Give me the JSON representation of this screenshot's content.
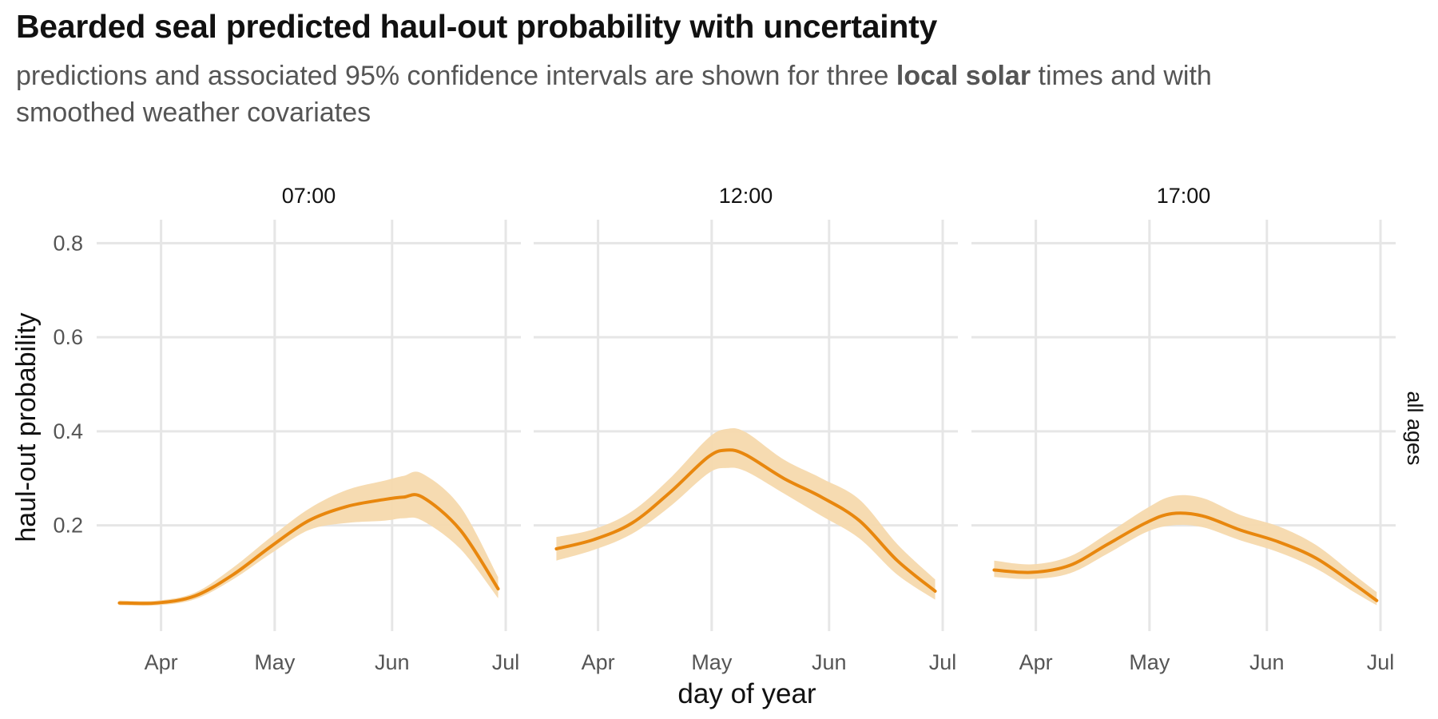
{
  "title": "Bearded seal predicted haul-out probability with uncertainty",
  "subtitle": {
    "before": "predictions and associated 95% confidence intervals are shown for three ",
    "bold": "local solar",
    "after": " times and with smoothed weather covariates"
  },
  "colors": {
    "line": "#E8870E",
    "ribbon": "#F6D9AD",
    "grid": "#E6E6E6",
    "tick_text": "#555555",
    "label_text": "#111111"
  },
  "chart_data": {
    "type": "line",
    "xlabel": "day of year",
    "ylabel": "haul-out probability",
    "strip_right": "all ages",
    "x_ticks": [
      "Apr",
      "May",
      "Jun",
      "Jul"
    ],
    "x_tick_days": [
      91,
      121,
      152,
      182
    ],
    "xlim": [
      74,
      186
    ],
    "y_ticks": [
      "0.2",
      "0.4",
      "0.6",
      "0.8"
    ],
    "y_tick_values": [
      0.2,
      0.4,
      0.6,
      0.8
    ],
    "ylim": [
      -0.025,
      0.85
    ],
    "grid": true,
    "panels": [
      {
        "label": "07:00",
        "x": [
          80,
          90,
          100,
          110,
          120,
          130,
          140,
          150,
          155,
          160,
          170,
          180
        ],
        "y": [
          0.035,
          0.035,
          0.05,
          0.095,
          0.155,
          0.21,
          0.24,
          0.255,
          0.26,
          0.26,
          0.19,
          0.065
        ],
        "lower": [
          0.03,
          0.03,
          0.043,
          0.085,
          0.14,
          0.19,
          0.205,
          0.21,
          0.215,
          0.21,
          0.15,
          0.045
        ],
        "upper": [
          0.04,
          0.04,
          0.057,
          0.11,
          0.175,
          0.235,
          0.275,
          0.295,
          0.305,
          0.31,
          0.24,
          0.09
        ]
      },
      {
        "label": "12:00",
        "x": [
          80,
          90,
          100,
          110,
          120,
          125,
          130,
          140,
          150,
          160,
          170,
          180
        ],
        "y": [
          0.15,
          0.17,
          0.205,
          0.27,
          0.345,
          0.36,
          0.35,
          0.3,
          0.26,
          0.21,
          0.125,
          0.06
        ],
        "lower": [
          0.125,
          0.148,
          0.182,
          0.24,
          0.31,
          0.322,
          0.315,
          0.268,
          0.22,
          0.172,
          0.095,
          0.042
        ],
        "upper": [
          0.175,
          0.192,
          0.23,
          0.3,
          0.385,
          0.405,
          0.398,
          0.34,
          0.3,
          0.255,
          0.16,
          0.085
        ]
      },
      {
        "label": "17:00",
        "x": [
          80,
          90,
          100,
          110,
          120,
          127,
          135,
          145,
          155,
          165,
          175,
          181
        ],
        "y": [
          0.105,
          0.1,
          0.115,
          0.16,
          0.205,
          0.225,
          0.22,
          0.19,
          0.165,
          0.13,
          0.075,
          0.04
        ],
        "lower": [
          0.09,
          0.086,
          0.098,
          0.14,
          0.185,
          0.2,
          0.196,
          0.168,
          0.143,
          0.108,
          0.058,
          0.03
        ],
        "upper": [
          0.125,
          0.117,
          0.134,
          0.183,
          0.235,
          0.262,
          0.258,
          0.222,
          0.198,
          0.158,
          0.095,
          0.058
        ]
      }
    ]
  }
}
